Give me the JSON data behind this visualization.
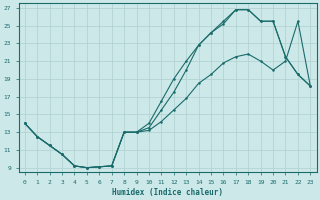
{
  "xlabel": "Humidex (Indice chaleur)",
  "bg_color": "#cde8e8",
  "grid_color": "#aed0d0",
  "line_color": "#1a6b6b",
  "xlim": [
    -0.5,
    23.5
  ],
  "ylim": [
    8.5,
    27.5
  ],
  "xticks": [
    0,
    1,
    2,
    3,
    4,
    5,
    6,
    7,
    8,
    9,
    10,
    11,
    12,
    13,
    14,
    15,
    16,
    17,
    18,
    19,
    20,
    21,
    22,
    23
  ],
  "yticks": [
    9,
    11,
    13,
    15,
    17,
    19,
    21,
    23,
    25,
    27
  ],
  "line1_x": [
    0,
    1,
    2,
    3,
    4,
    5,
    6,
    7,
    8,
    9,
    10,
    11,
    12,
    13,
    14,
    15,
    16,
    17,
    18,
    19,
    20,
    21,
    22,
    23
  ],
  "line1_y": [
    14,
    12.5,
    11.5,
    10.5,
    9.2,
    9.0,
    9.1,
    9.2,
    13.0,
    13.0,
    13.2,
    14.2,
    15.5,
    16.8,
    18.5,
    19.5,
    20.8,
    21.5,
    21.8,
    21.0,
    20.0,
    21.0,
    25.5,
    18.2
  ],
  "line2_x": [
    0,
    1,
    2,
    3,
    4,
    5,
    6,
    7,
    8,
    9,
    10,
    11,
    12,
    13,
    14,
    15,
    16,
    17,
    18,
    19,
    20,
    21,
    22,
    23
  ],
  "line2_y": [
    14,
    12.5,
    11.5,
    10.5,
    9.2,
    9.0,
    9.1,
    9.2,
    13.0,
    13.0,
    14.0,
    16.5,
    19.0,
    21.0,
    22.8,
    24.2,
    25.5,
    26.8,
    26.8,
    25.5,
    25.5,
    21.5,
    19.5,
    18.2
  ],
  "line3_x": [
    0,
    1,
    2,
    3,
    4,
    5,
    6,
    7,
    8,
    9,
    10,
    11,
    12,
    13,
    14,
    15,
    16,
    17,
    18,
    19,
    20,
    21,
    22,
    23
  ],
  "line3_y": [
    14,
    12.5,
    11.5,
    10.5,
    9.2,
    9.0,
    9.1,
    9.2,
    13.0,
    13.0,
    13.5,
    15.5,
    17.5,
    20.0,
    22.8,
    24.2,
    25.2,
    26.8,
    26.8,
    25.5,
    25.5,
    21.5,
    19.5,
    18.2
  ]
}
